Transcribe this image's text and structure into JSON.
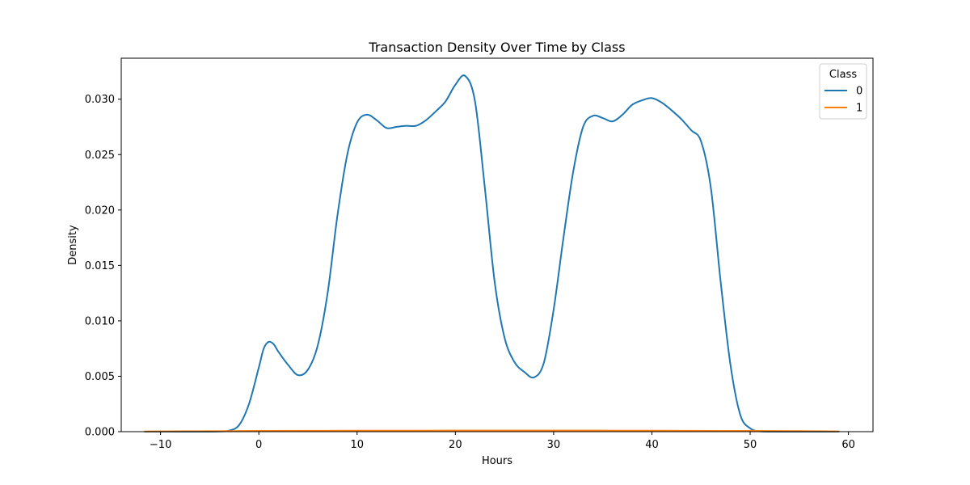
{
  "chart_data": {
    "type": "line",
    "title": "Transaction Density Over Time by Class",
    "xlabel": "Hours",
    "ylabel": "Density",
    "xlim": [
      -14.0,
      62.5
    ],
    "ylim": [
      0,
      0.0337
    ],
    "x_ticks": [
      -10,
      0,
      10,
      20,
      30,
      40,
      50,
      60
    ],
    "x_tick_labels": [
      "−10",
      "0",
      "10",
      "20",
      "30",
      "40",
      "50",
      "60"
    ],
    "y_ticks": [
      0,
      0.005,
      0.01,
      0.015,
      0.02,
      0.025,
      0.03
    ],
    "y_tick_labels": [
      "0.000",
      "0.005",
      "0.010",
      "0.015",
      "0.020",
      "0.025",
      "0.030"
    ],
    "grid": false,
    "legend": {
      "title": "Class",
      "placement": "top-right"
    },
    "series": [
      {
        "name": "0",
        "color": "#1f77b4",
        "x": [
          -11.6,
          -6,
          -4,
          -3,
          -2,
          -1,
          0,
          0.5,
          1,
          1.5,
          2,
          3,
          4,
          5,
          6,
          7,
          8,
          9,
          10,
          11,
          12,
          13,
          14,
          15,
          16,
          17,
          18,
          19,
          20,
          21,
          22,
          23,
          24,
          25,
          26,
          27,
          28,
          29,
          30,
          31,
          32,
          33,
          34,
          35,
          36,
          37,
          38,
          39,
          40,
          41,
          42,
          43,
          44,
          45,
          46,
          47,
          48,
          49,
          50,
          51,
          52,
          55,
          59
        ],
        "y": [
          0,
          0,
          2e-05,
          0.0001,
          0.0006,
          0.0025,
          0.0058,
          0.0075,
          0.0081,
          0.0079,
          0.0072,
          0.006,
          0.0051,
          0.0056,
          0.0078,
          0.0125,
          0.0195,
          0.025,
          0.0279,
          0.0286,
          0.0281,
          0.0274,
          0.0275,
          0.0276,
          0.0276,
          0.0281,
          0.0289,
          0.0298,
          0.0313,
          0.0321,
          0.0298,
          0.022,
          0.0135,
          0.0085,
          0.0063,
          0.0054,
          0.0049,
          0.0062,
          0.011,
          0.0175,
          0.0235,
          0.0275,
          0.0285,
          0.0283,
          0.028,
          0.0286,
          0.0295,
          0.0299,
          0.0301,
          0.0297,
          0.029,
          0.0282,
          0.0272,
          0.0262,
          0.022,
          0.0135,
          0.006,
          0.0015,
          0.0003,
          3e-05,
          0,
          0,
          0
        ]
      },
      {
        "name": "1",
        "color": "#ff7f0e",
        "x": [
          -11.6,
          -6,
          0,
          10,
          20,
          30,
          40,
          50,
          55,
          59
        ],
        "y": [
          2e-05,
          4e-05,
          7e-05,
          9e-05,
          0.0001,
          0.0001,
          9e-05,
          7e-05,
          5e-05,
          3e-05
        ]
      }
    ]
  }
}
